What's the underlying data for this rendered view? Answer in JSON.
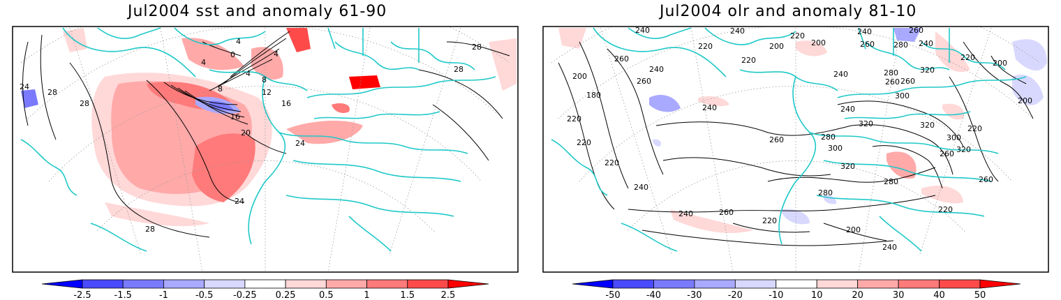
{
  "panels": [
    {
      "title": "Jul2004 sst and anomaly 61-90",
      "contour_labels": [
        "24",
        "28",
        "28",
        "28",
        "28",
        "24",
        "28",
        "4",
        "4",
        "0",
        "4",
        "4",
        "8",
        "8",
        "12",
        "16",
        "16",
        "20",
        "24"
      ],
      "colorbar": {
        "ticks": [
          "-2.5",
          "-1.5",
          "-1",
          "-0.5",
          "-0.25",
          "0.25",
          "0.5",
          "1",
          "1.5",
          "2.5"
        ],
        "colors": [
          "#0000ff",
          "#4a4aff",
          "#7a7aff",
          "#a9a9ff",
          "#d8d8ff",
          "#ffffff",
          "#ffd8d8",
          "#ffa9a9",
          "#ff7a7a",
          "#ff4a4a",
          "#ff0000"
        ]
      }
    },
    {
      "title": "Jul2004 olr and anomaly 81-10",
      "contour_labels": [
        "240",
        "220",
        "200",
        "220",
        "240",
        "260",
        "240",
        "280",
        "240",
        "260",
        "200",
        "220",
        "240",
        "260",
        "280",
        "320",
        "200",
        "200",
        "220",
        "180",
        "200",
        "260",
        "240",
        "260",
        "220",
        "220",
        "220",
        "240",
        "260",
        "240",
        "240",
        "260",
        "280",
        "300",
        "320",
        "320",
        "280",
        "300",
        "220",
        "200",
        "240",
        "260",
        "220",
        "240",
        "260",
        "280",
        "300",
        "220",
        "260",
        "320",
        "320"
      ],
      "colorbar": {
        "ticks": [
          "-50",
          "-40",
          "-30",
          "-20",
          "-10",
          "10",
          "20",
          "30",
          "40",
          "50"
        ],
        "colors": [
          "#0000ff",
          "#4a4aff",
          "#7a7aff",
          "#a9a9ff",
          "#d8d8ff",
          "#ffffff",
          "#ffd8d8",
          "#ffa9a9",
          "#ff7a7a",
          "#ff4a4a",
          "#ff0000"
        ]
      }
    }
  ],
  "colors": {
    "coast": "#1fc8c8",
    "contour": "#000000",
    "grid": "#999999"
  }
}
